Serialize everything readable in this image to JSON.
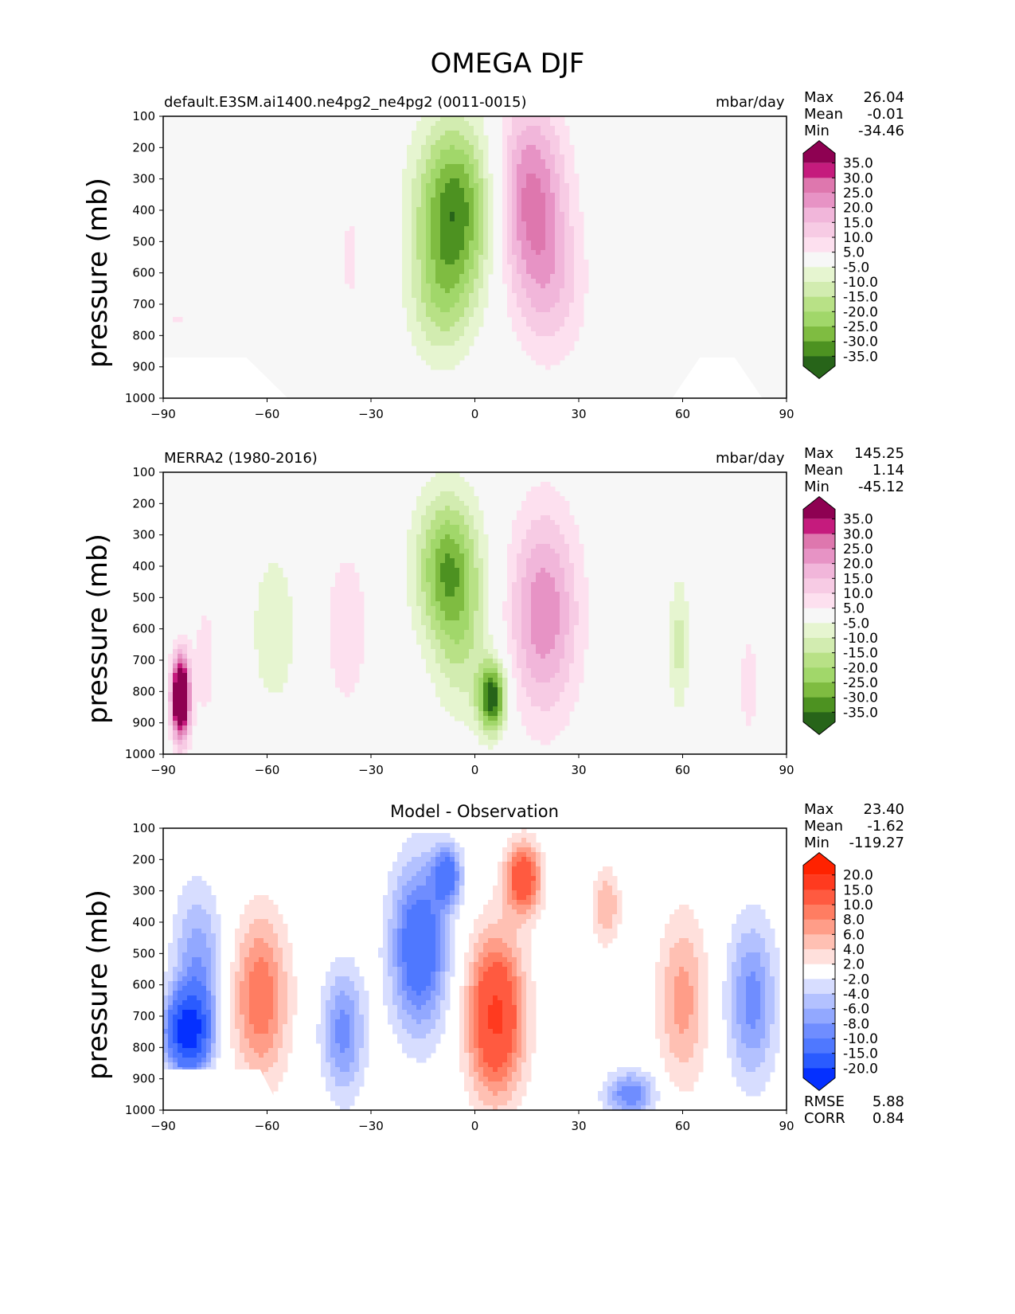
{
  "suptitle": "OMEGA DJF",
  "colors": {
    "seq": [
      "#276419",
      "#4d9221",
      "#7fbc41",
      "#a1d76a",
      "#b8e186",
      "#d2ecb0",
      "#e6f5d0",
      "#f7f7f7",
      "#fde0ef",
      "#f7cbe4",
      "#f1b6da",
      "#e793c5",
      "#de77ae",
      "#c51b7d",
      "#8e0152"
    ],
    "diff": [
      "#0530ff",
      "#2a5bff",
      "#4f78ff",
      "#6f8dff",
      "#92a8ff",
      "#b3c1ff",
      "#d7ddff",
      "#ffffff",
      "#ffe0dc",
      "#ffc0b3",
      "#ff9d88",
      "#ff7d62",
      "#ff5a40",
      "#ff3a1f",
      "#ff2200"
    ]
  },
  "chart_data": [
    {
      "type": "contour",
      "panel": "model",
      "title_left": "default.E3SM.ai1400.ne4pg2_ne4pg2 (0011-0015)",
      "units": "mbar/day",
      "stats": [
        {
          "label": "Max",
          "value": "26.04"
        },
        {
          "label": "Mean",
          "value": "-0.01"
        },
        {
          "label": "Min",
          "value": "-34.46"
        }
      ],
      "ylabel": "pressure (mb)",
      "yticks": [
        "100",
        "200",
        "300",
        "400",
        "500",
        "600",
        "700",
        "800",
        "900",
        "1000"
      ],
      "xticks": [
        "−90",
        "−60",
        "−30",
        "0",
        "30",
        "60",
        "90"
      ],
      "xlim": [
        -90,
        90
      ],
      "ylim": [
        1000,
        100
      ],
      "colorbar": {
        "palette": "seq",
        "labels": [
          "35.0",
          "30.0",
          "25.0",
          "20.0",
          "15.0",
          "10.0",
          "5.0",
          "-5.0",
          "-10.0",
          "-15.0",
          "-20.0",
          "-25.0",
          "-30.0",
          "-35.0"
        ]
      },
      "features": [
        {
          "lat": -6,
          "p": 400,
          "w": 11,
          "hp": 280,
          "v": -34
        },
        {
          "lat": -10,
          "p": 700,
          "w": 9,
          "hp": 200,
          "v": -12
        },
        {
          "lat": 16,
          "p": 350,
          "w": 10,
          "hp": 300,
          "v": 26
        },
        {
          "lat": 22,
          "p": 650,
          "w": 10,
          "hp": 250,
          "v": 12
        },
        {
          "lat": -36,
          "p": 550,
          "w": 4,
          "hp": 230,
          "v": 6
        },
        {
          "lat": -86,
          "p": 750,
          "w": 3,
          "hp": 30,
          "v": 6
        }
      ]
    },
    {
      "type": "contour",
      "panel": "observation",
      "title_left": "MERRA2 (1980-2016)",
      "units": "mbar/day",
      "stats": [
        {
          "label": "Max",
          "value": "145.25"
        },
        {
          "label": "Mean",
          "value": "1.14"
        },
        {
          "label": "Min",
          "value": "-45.12"
        }
      ],
      "ylabel": "pressure (mb)",
      "yticks": [
        "100",
        "200",
        "300",
        "400",
        "500",
        "600",
        "700",
        "800",
        "900",
        "1000"
      ],
      "xticks": [
        "−90",
        "−60",
        "−30",
        "0",
        "30",
        "60",
        "90"
      ],
      "xlim": [
        -90,
        90
      ],
      "ylim": [
        1000,
        100
      ],
      "colorbar": {
        "palette": "seq",
        "labels": [
          "35.0",
          "30.0",
          "25.0",
          "20.0",
          "15.0",
          "10.0",
          "5.0",
          "-5.0",
          "-10.0",
          "-15.0",
          "-20.0",
          "-25.0",
          "-30.0",
          "-35.0"
        ]
      },
      "features": [
        {
          "lat": -8,
          "p": 400,
          "w": 9,
          "hp": 230,
          "v": -28
        },
        {
          "lat": 5,
          "p": 820,
          "w": 4,
          "hp": 110,
          "v": -40
        },
        {
          "lat": -4,
          "p": 650,
          "w": 8,
          "hp": 250,
          "v": -12
        },
        {
          "lat": 20,
          "p": 550,
          "w": 10,
          "hp": 330,
          "v": 24
        },
        {
          "lat": -37,
          "p": 600,
          "w": 6,
          "hp": 260,
          "v": 10
        },
        {
          "lat": -58,
          "p": 600,
          "w": 7,
          "hp": 270,
          "v": -9
        },
        {
          "lat": -85,
          "p": 820,
          "w": 2.5,
          "hp": 130,
          "v": 60
        },
        {
          "lat": -78,
          "p": 700,
          "w": 4,
          "hp": 250,
          "v": 7
        },
        {
          "lat": 59,
          "p": 650,
          "w": 3,
          "hp": 220,
          "v": -12
        },
        {
          "lat": 79,
          "p": 780,
          "w": 3,
          "hp": 180,
          "v": 8
        }
      ]
    },
    {
      "type": "contour",
      "panel": "difference",
      "title_center": "Model - Observation",
      "stats": [
        {
          "label": "Max",
          "value": "23.40"
        },
        {
          "label": "Mean",
          "value": "-1.62"
        },
        {
          "label": "Min",
          "value": "-119.27"
        }
      ],
      "bottom_stats": [
        {
          "label": "RMSE",
          "value": "5.88"
        },
        {
          "label": "CORR",
          "value": "0.84"
        }
      ],
      "ylabel": "pressure (mb)",
      "yticks": [
        "100",
        "200",
        "300",
        "400",
        "500",
        "600",
        "700",
        "800",
        "900",
        "1000"
      ],
      "xticks": [
        "−90",
        "−60",
        "−30",
        "0",
        "30",
        "60",
        "90"
      ],
      "xlim": [
        -90,
        90
      ],
      "ylim": [
        1000,
        100
      ],
      "colorbar": {
        "palette": "diff",
        "labels": [
          "20.0",
          "15.0",
          "10.0",
          "8.0",
          "6.0",
          "4.0",
          "2.0",
          "-2.0",
          "-4.0",
          "-6.0",
          "-8.0",
          "-10.0",
          "-15.0",
          "-20.0"
        ]
      },
      "features": [
        {
          "lat": -16,
          "p": 480,
          "w": 8,
          "hp": 260,
          "v": -14
        },
        {
          "lat": -8,
          "p": 250,
          "w": 4,
          "hp": 90,
          "v": -12
        },
        {
          "lat": 6,
          "p": 700,
          "w": 8,
          "hp": 250,
          "v": 16
        },
        {
          "lat": 14,
          "p": 260,
          "w": 5,
          "hp": 110,
          "v": 14
        },
        {
          "lat": -62,
          "p": 640,
          "w": 8,
          "hp": 260,
          "v": 10
        },
        {
          "lat": -83,
          "p": 750,
          "w": 6,
          "hp": 120,
          "v": -22
        },
        {
          "lat": -80,
          "p": 550,
          "w": 7,
          "hp": 250,
          "v": -8
        },
        {
          "lat": -38,
          "p": 750,
          "w": 6,
          "hp": 200,
          "v": -9
        },
        {
          "lat": 38,
          "p": 350,
          "w": 4,
          "hp": 120,
          "v": 6
        },
        {
          "lat": 60,
          "p": 650,
          "w": 7,
          "hp": 270,
          "v": 7
        },
        {
          "lat": 80,
          "p": 650,
          "w": 7,
          "hp": 250,
          "v": -9
        },
        {
          "lat": 45,
          "p": 950,
          "w": 7,
          "hp": 70,
          "v": -10
        }
      ]
    }
  ]
}
